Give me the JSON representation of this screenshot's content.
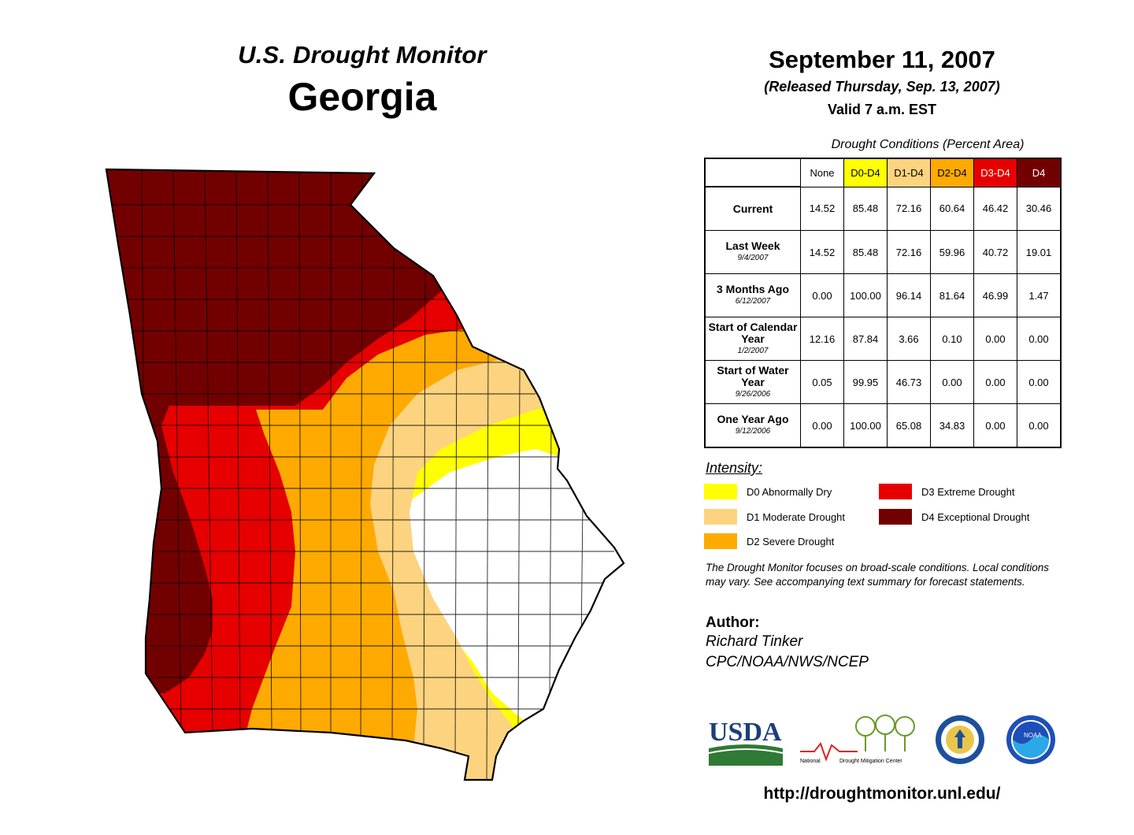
{
  "header": {
    "subtitle": "U.S. Drought Monitor",
    "state": "Georgia",
    "date": "September 11, 2007",
    "released": "(Released Thursday, Sep. 13, 2007)",
    "valid": "Valid 7 a.m. EST"
  },
  "table": {
    "caption": "Drought Conditions (Percent Area)",
    "columns": [
      "None",
      "D0-D4",
      "D1-D4",
      "D2-D4",
      "D3-D4",
      "D4"
    ],
    "rows": [
      {
        "label": "Current",
        "date": "",
        "values": [
          "14.52",
          "85.48",
          "72.16",
          "60.64",
          "46.42",
          "30.46"
        ]
      },
      {
        "label": "Last Week",
        "date": "9/4/2007",
        "values": [
          "14.52",
          "85.48",
          "72.16",
          "59.96",
          "40.72",
          "19.01"
        ]
      },
      {
        "label": "3 Months Ago",
        "date": "6/12/2007",
        "values": [
          "0.00",
          "100.00",
          "96.14",
          "81.64",
          "46.99",
          "1.47"
        ]
      },
      {
        "label": "Start of Calendar Year",
        "date": "1/2/2007",
        "values": [
          "12.16",
          "87.84",
          "3.66",
          "0.10",
          "0.00",
          "0.00"
        ]
      },
      {
        "label": "Start of Water Year",
        "date": "9/26/2006",
        "values": [
          "0.05",
          "99.95",
          "46.73",
          "0.00",
          "0.00",
          "0.00"
        ]
      },
      {
        "label": "One Year Ago",
        "date": "9/12/2006",
        "values": [
          "0.00",
          "100.00",
          "65.08",
          "34.83",
          "0.00",
          "0.00"
        ]
      }
    ]
  },
  "legend": {
    "title": "Intensity:",
    "items": [
      {
        "label": "D0 Abnormally Dry",
        "color": "#ffff00"
      },
      {
        "label": "D1 Moderate Drought",
        "color": "#fcd37f"
      },
      {
        "label": "D2 Severe Drought",
        "color": "#ffaa00"
      },
      {
        "label": "D3 Extreme Drought",
        "color": "#e60000"
      },
      {
        "label": "D4 Exceptional Drought",
        "color": "#730000"
      }
    ]
  },
  "note": "The Drought Monitor focuses on broad-scale conditions. Local conditions may vary. See accompanying text summary for forecast statements.",
  "author": {
    "label": "Author:",
    "name": "Richard Tinker",
    "org": "CPC/NOAA/NWS/NCEP"
  },
  "logos": {
    "usda": "USDA",
    "ndmc_left": "National",
    "ndmc_right": "Drought Mitigation Center",
    "noaa": "NOAA"
  },
  "url": "http://droughtmonitor.unl.edu/"
}
